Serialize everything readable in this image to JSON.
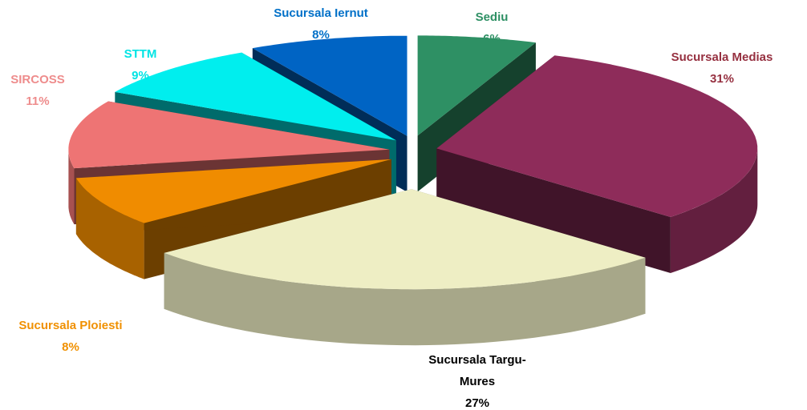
{
  "chart_data": {
    "type": "pie3d",
    "categories": [
      "Sediu",
      "Sucursala Medias",
      "Sucursala Targu-Mures",
      "Sucursala Ploiesti",
      "SIRCOSS",
      "STTM",
      "Sucursala Iernut"
    ],
    "values": [
      6,
      31,
      27,
      8,
      11,
      9,
      8
    ],
    "value_labels": [
      "6%",
      "31%",
      "27%",
      "8%",
      "11%",
      "9%",
      "8%"
    ],
    "colors": [
      "#2e9064",
      "#8e2c5a",
      "#eeeec4",
      "#f08c00",
      "#ee7474",
      "#00eeee",
      "#0064c4"
    ],
    "label_colors": [
      "#2e9064",
      "#963040",
      "#000000",
      "#f09000",
      "#ee8c8c",
      "#00e4e4",
      "#0070c8"
    ]
  }
}
